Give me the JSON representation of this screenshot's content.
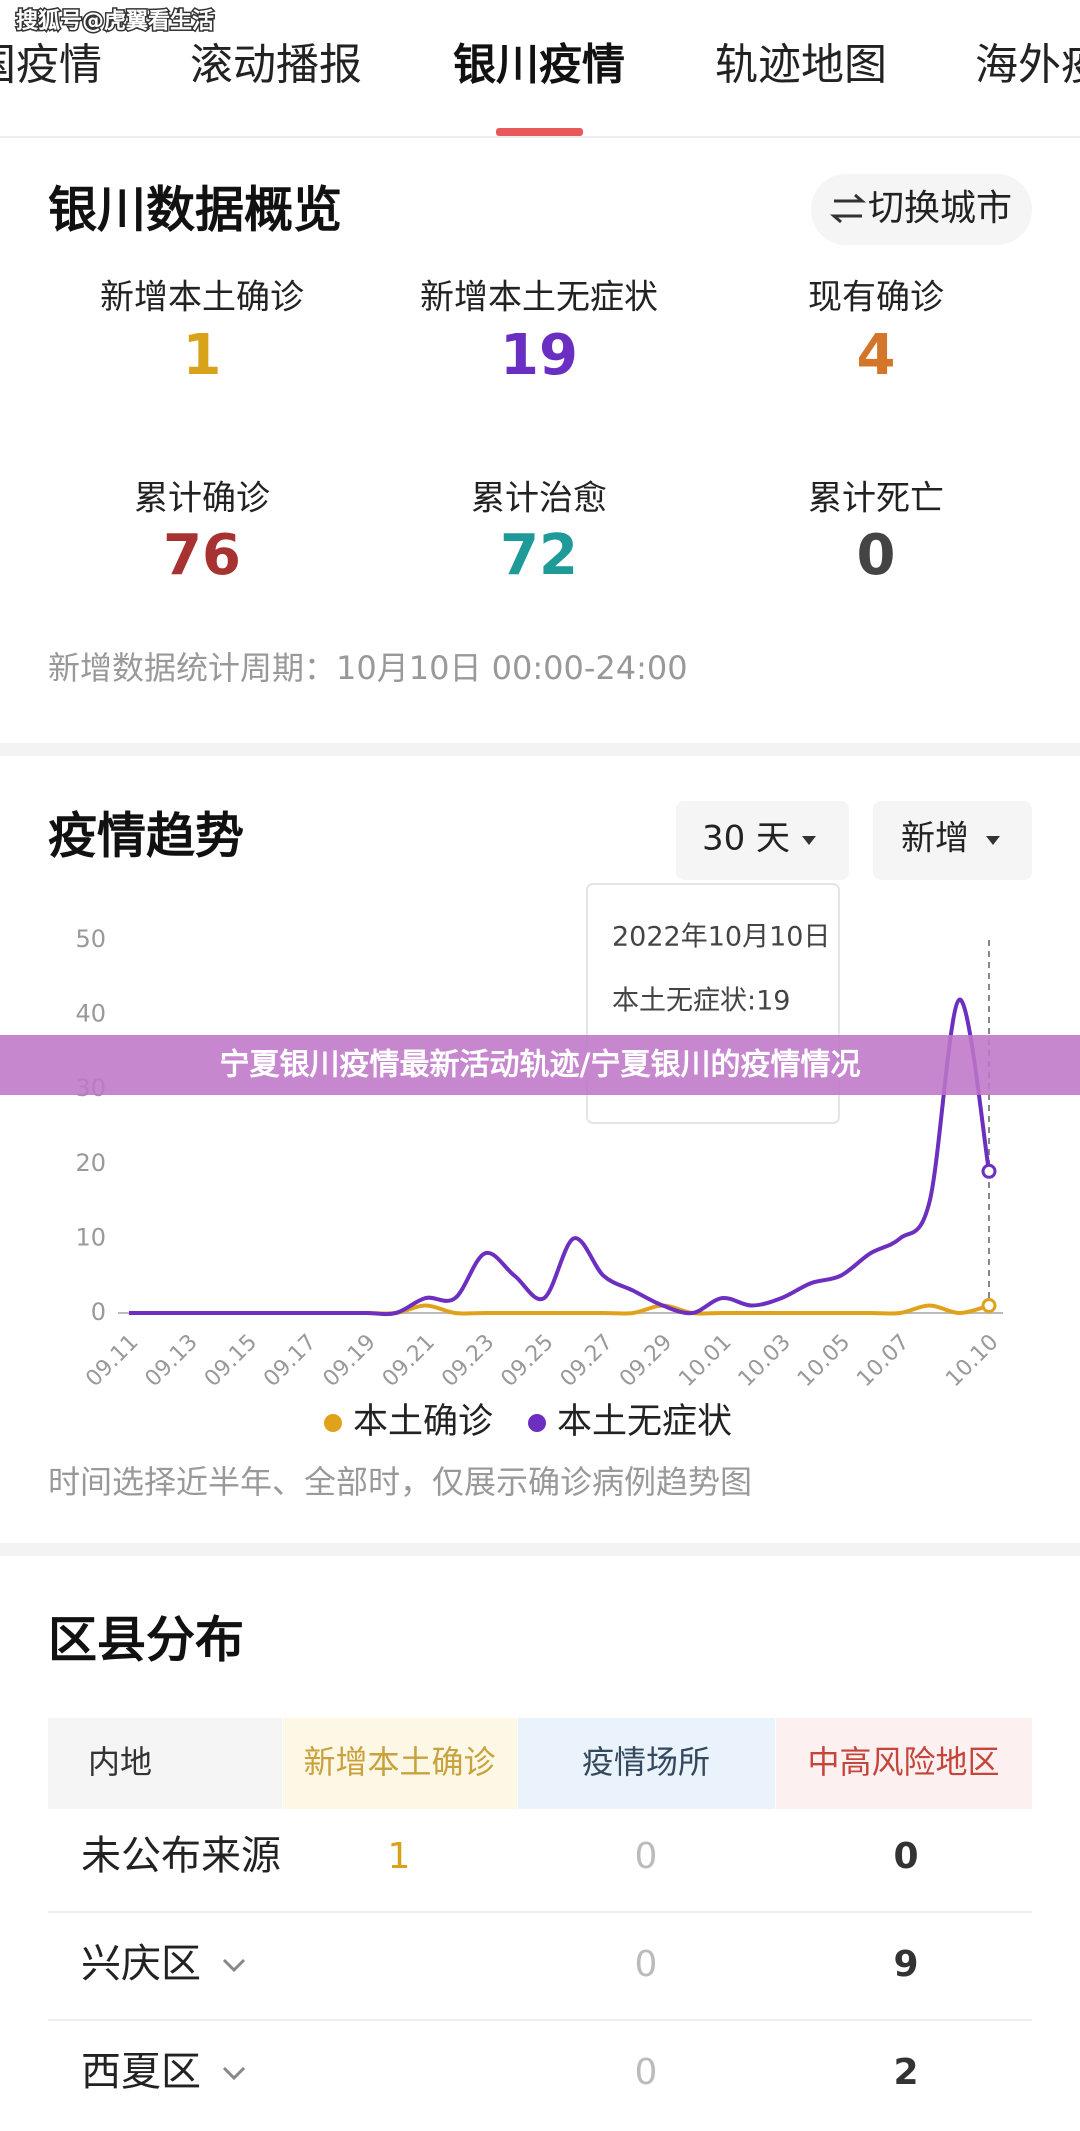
{
  "watermark": "搜狐号@虎翼看生活",
  "tabs": [
    {
      "label": "全国疫情",
      "active": false
    },
    {
      "label": "滚动播报",
      "active": false
    },
    {
      "label": "银川疫情",
      "active": true
    },
    {
      "label": "轨迹地图",
      "active": false
    },
    {
      "label": "海外疫情",
      "active": false
    }
  ],
  "overview": {
    "title": "银川数据概览",
    "button": "切换城市",
    "stats": [
      {
        "label": "新增本土确诊",
        "value": 1,
        "color": "#d9a21b"
      },
      {
        "label": "新增本土无症状",
        "value": 19,
        "color": "#6a2fc2"
      },
      {
        "label": "现有确诊",
        "value": 4,
        "color": "#d4762a"
      },
      {
        "label": "累计确诊",
        "value": 76,
        "color": "#a83232"
      },
      {
        "label": "累计治愈",
        "value": 72,
        "color": "#1e9a99"
      },
      {
        "label": "累计死亡",
        "value": 0,
        "color": "#444444"
      }
    ],
    "note": "新增数据统计周期：10月10日 00:00-24:00"
  },
  "trend_controls": {
    "range": "30 天",
    "metric": "新增"
  },
  "trend_note": "时间选择近半年、全部时，仅展示确诊病例趋势图",
  "banner": "宁夏银川疫情最新活动轨迹/宁夏银川的疫情情况",
  "chart_data": {
    "type": "line",
    "title": "疫情趋势",
    "categories": [
      "09.11",
      null,
      "09.13",
      null,
      "09.15",
      null,
      "09.17",
      null,
      "09.19",
      null,
      "09.21",
      null,
      "09.23",
      null,
      "09.25",
      null,
      "09.27",
      null,
      "09.29",
      null,
      "10.01",
      null,
      "10.03",
      null,
      "10.05",
      null,
      "10.07",
      null,
      null,
      "10.10"
    ],
    "series": [
      {
        "name": "本土确诊",
        "color": "#e0a21a",
        "values": [
          0,
          0,
          0,
          0,
          0,
          0,
          0,
          0,
          0,
          0,
          1,
          0,
          0,
          0,
          0,
          0,
          0,
          0,
          1,
          0,
          0,
          0,
          0,
          0,
          0,
          0,
          0,
          1,
          0,
          1
        ]
      },
      {
        "name": "本土无症状",
        "color": "#6c2fbf",
        "values": [
          0,
          0,
          0,
          0,
          0,
          0,
          0,
          0,
          0,
          0,
          2,
          2,
          8,
          5,
          2,
          10,
          5,
          3,
          1,
          0,
          2,
          1,
          2,
          4,
          5,
          8,
          10,
          15,
          42,
          19
        ]
      }
    ],
    "ylim": [
      0,
      50
    ],
    "yticks": [
      0,
      10,
      20,
      30,
      40,
      50
    ],
    "grid": false,
    "legend": "bottom",
    "tooltip": {
      "title": "2022年10月10日",
      "text": "本土无症状:19"
    }
  },
  "districts": {
    "title": "区县分布",
    "columns": [
      "内地",
      "新增本土确诊",
      "疫情场所",
      "中高风险地区"
    ],
    "rows": [
      {
        "cells": [
          "未公布来源",
          1,
          0,
          0
        ],
        "expandable": false
      },
      {
        "cells": [
          "兴庆区",
          null,
          0,
          9
        ],
        "expandable": true
      },
      {
        "cells": [
          "西夏区",
          null,
          0,
          2
        ],
        "expandable": true
      }
    ]
  }
}
